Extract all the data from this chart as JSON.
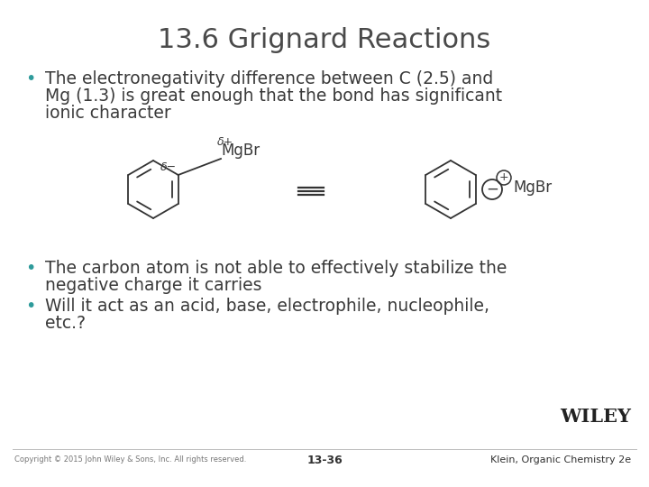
{
  "title": "13.6 Grignard Reactions",
  "title_color": "#4a4a4a",
  "title_fontsize": 22,
  "bullet_color": "#2E9B9B",
  "text_color": "#3a3a3a",
  "background_color": "#ffffff",
  "bullet1_line1": "The electronegativity difference between C (2.5) and",
  "bullet1_line2": "Mg (1.3) is great enough that the bond has significant",
  "bullet1_line3": "ionic character",
  "bullet2_line1": "The carbon atom is not able to effectively stabilize the",
  "bullet2_line2": "negative charge it carries",
  "bullet3_line1": "Will it act as an acid, base, electrophile, nucleophile,",
  "bullet3_line2": "etc.?",
  "footer_left": "Copyright © 2015 John Wiley & Sons, Inc. All rights reserved.",
  "footer_center": "13-36",
  "footer_right": "Klein, Organic Chemistry 2e",
  "wiley_text": "WILEY"
}
